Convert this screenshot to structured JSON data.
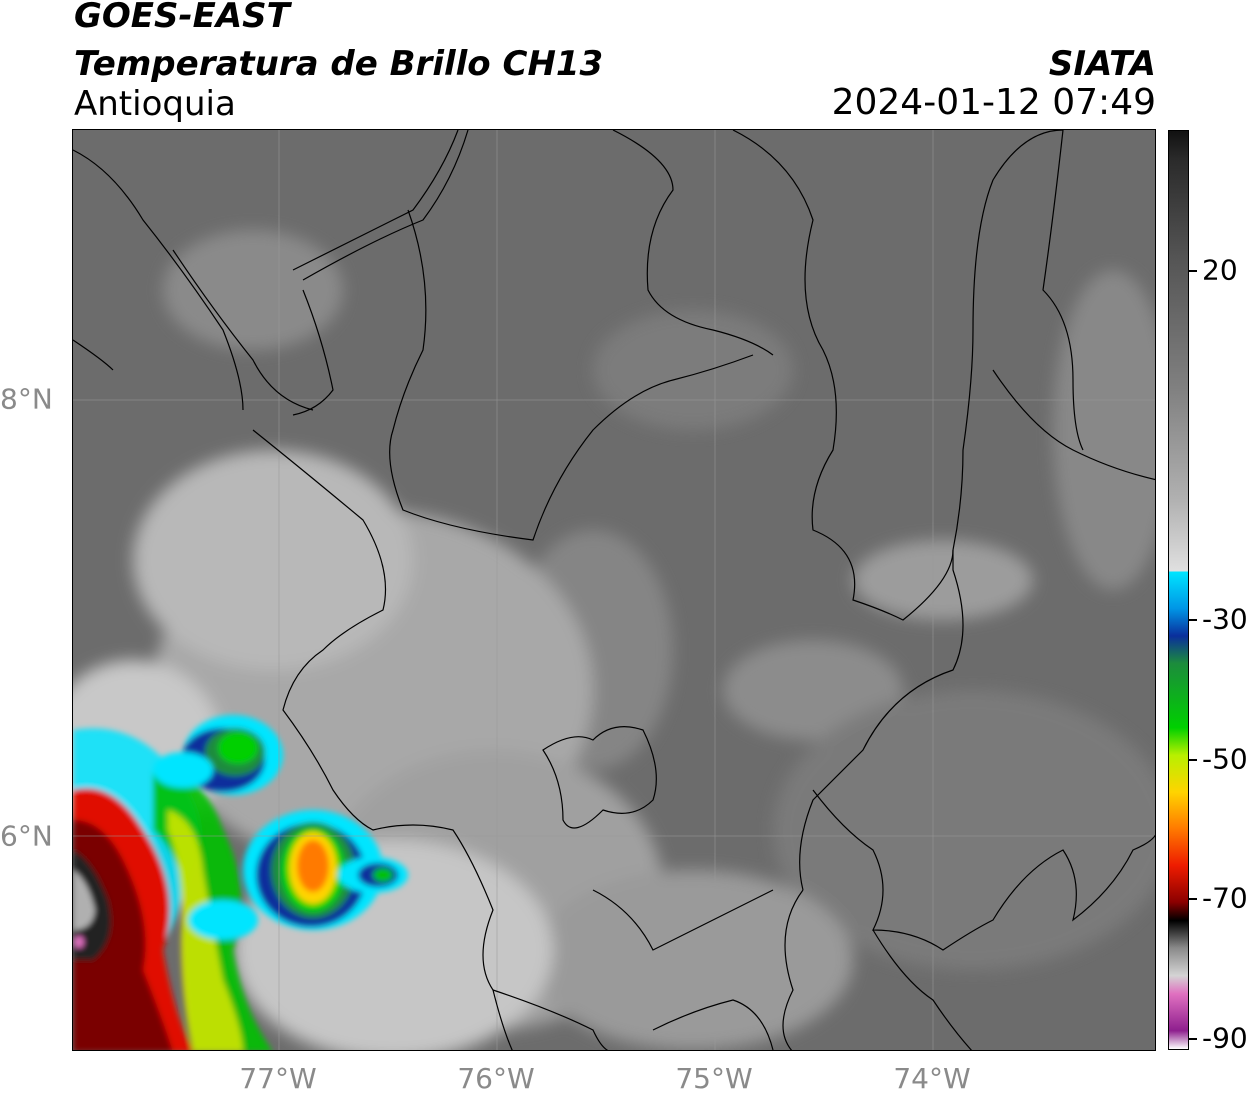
{
  "header": {
    "satellite": "GOES-EAST",
    "product": "Temperatura de Brillo CH13",
    "region": "Antioquia",
    "organization": "SIATA",
    "datetime": "2024-01-12 07:49"
  },
  "map": {
    "lat_labels": [
      "8°N",
      "6°N"
    ],
    "lon_labels": [
      "77°W",
      "76°W",
      "75°W",
      "74°W"
    ]
  },
  "colorbar": {
    "ticks": [
      "20",
      "-30",
      "-50",
      "-70",
      "-90"
    ],
    "stops": [
      "#111111",
      "#2a2a2a",
      "#555555",
      "#808080",
      "#b0b0b0",
      "#e0e0e0",
      "#ffffff",
      "#00e5ff",
      "#0096e6",
      "#0a2f9c",
      "#1c8c3c",
      "#00d000",
      "#b8f000",
      "#ffd400",
      "#ff7a00",
      "#ee1c00",
      "#8b0000",
      "#000000",
      "#8a8a8a",
      "#d4d4d4",
      "#e070c0",
      "#8e1f8e",
      "#ffffff"
    ],
    "colors": {
      "background_gray": "#6e6e6e",
      "warm_cloud_white": "#dcdcdc",
      "cyan": "#00e5ff",
      "blue": "#0a2f9c",
      "green": "#00c000",
      "yellow": "#ffd400",
      "orange": "#ff7a00",
      "red": "#e01000",
      "dark_red": "#7a0000",
      "magenta": "#e070c0"
    }
  }
}
